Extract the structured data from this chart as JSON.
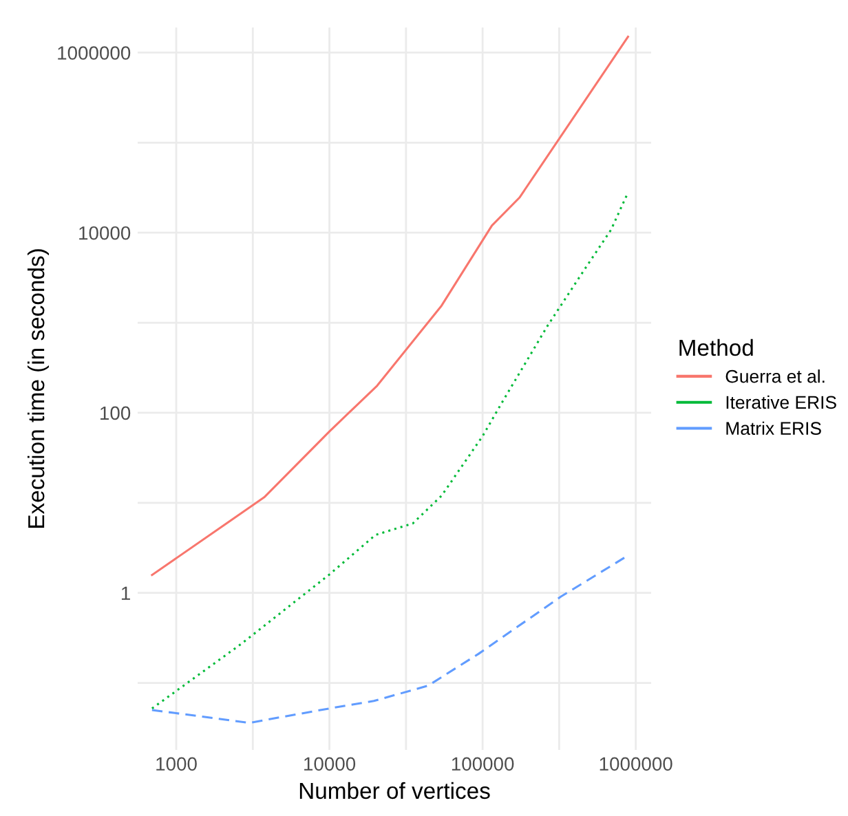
{
  "chart_data": {
    "type": "line",
    "xlabel": "Number of vertices",
    "ylabel": "Execution time (in seconds)",
    "legend_title": "Method",
    "log": "xy",
    "grid": true,
    "legend": "right",
    "xlim": [
      560,
      1260000
    ],
    "ylim": [
      0.018,
      1900000
    ],
    "xticks": [
      1000,
      {
        "value": 3162,
        "label": null
      },
      10000,
      {
        "value": 31623,
        "label": null
      },
      100000,
      {
        "value": 316228,
        "label": null
      },
      1000000
    ],
    "yticks": [
      {
        "value": 0.1,
        "label": null
      },
      1,
      {
        "value": 10,
        "label": null
      },
      100,
      {
        "value": 1000,
        "label": null
      },
      10000,
      {
        "value": 100000,
        "label": null
      },
      1000000
    ],
    "series": [
      {
        "name": "Guerra et al.",
        "color": "#f8766d",
        "line_style": "solid",
        "x": [
          695,
          3750,
          10000,
          20500,
          54000,
          115000,
          174000,
          890000
        ],
        "values": [
          1.58,
          11.5,
          62,
          200,
          1550,
          12000,
          24500,
          1500000
        ]
      },
      {
        "name": "Iterative ERIS",
        "color": "#00ba38",
        "line_style": "dotted",
        "x": [
          695,
          2650,
          10000,
          20000,
          35000,
          54000,
          100000,
          132000,
          265000,
          455000,
          690000,
          890000
        ],
        "values": [
          0.052,
          0.27,
          1.6,
          4.4,
          5.9,
          12,
          55,
          125,
          920,
          3740,
          10800,
          28000
        ]
      },
      {
        "name": "Matrix ERIS",
        "color": "#619cff",
        "line_style": "dashed",
        "x": [
          695,
          3000,
          10000,
          19500,
          44000,
          94000,
          325000,
          890000
        ],
        "values": [
          0.05,
          0.036,
          0.052,
          0.063,
          0.093,
          0.21,
          0.91,
          2.6
        ]
      }
    ]
  }
}
